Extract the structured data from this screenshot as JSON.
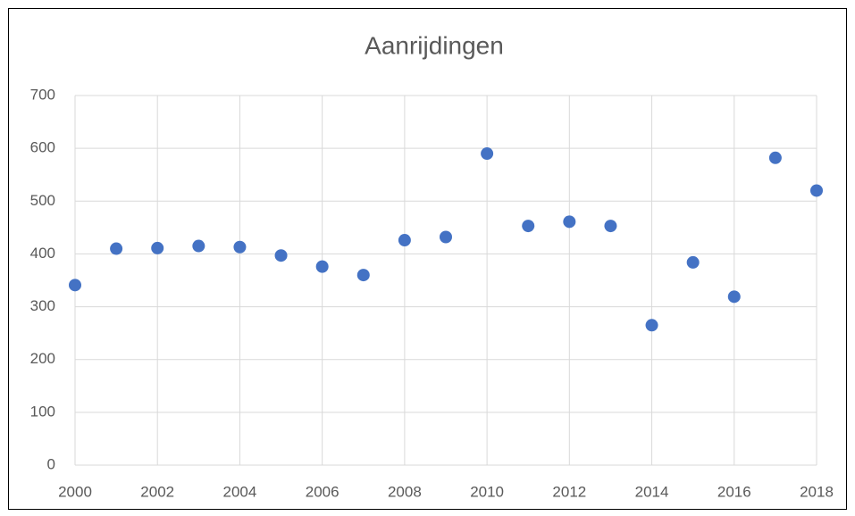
{
  "chart_data": {
    "type": "scatter",
    "title": "Aanrijdingen",
    "x": [
      2000,
      2001,
      2002,
      2003,
      2004,
      2005,
      2006,
      2007,
      2008,
      2009,
      2010,
      2011,
      2012,
      2013,
      2014,
      2015,
      2016,
      2017,
      2018
    ],
    "values": [
      341,
      410,
      411,
      415,
      413,
      397,
      376,
      360,
      426,
      432,
      590,
      453,
      461,
      453,
      265,
      384,
      319,
      582,
      520
    ],
    "color": "#4472c4",
    "xlim": [
      2000,
      2018
    ],
    "xticks": [
      2000,
      2002,
      2004,
      2006,
      2008,
      2010,
      2012,
      2014,
      2016,
      2018
    ],
    "ylim": [
      0,
      700
    ],
    "yticks": [
      0,
      100,
      200,
      300,
      400,
      500,
      600,
      700
    ],
    "grid": true
  }
}
